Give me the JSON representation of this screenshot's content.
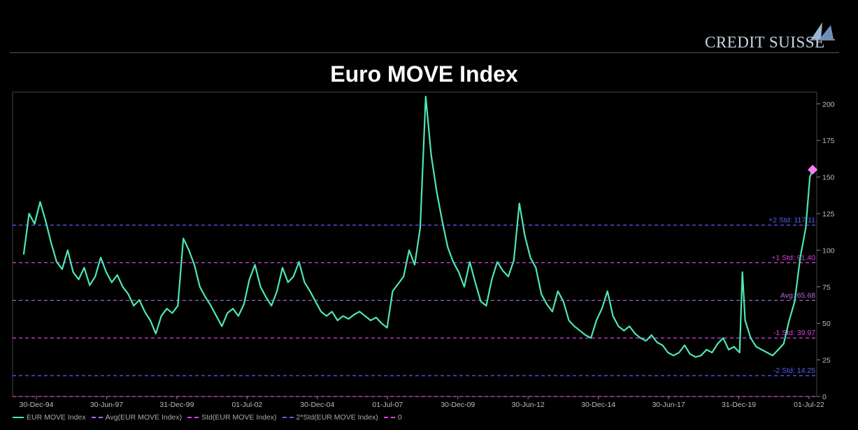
{
  "header": {
    "logo_text": "CREDIT SUISSE",
    "logo_icon": "sails-icon"
  },
  "chart_data": {
    "type": "line",
    "title": "Euro MOVE Index",
    "xlabel": "",
    "ylabel": "",
    "x_tick_labels": [
      "30-Dec-94",
      "30-Jun-97",
      "31-Dec-99",
      "01-Jul-02",
      "30-Dec-04",
      "01-Jul-07",
      "30-Dec-09",
      "30-Jun-12",
      "30-Dec-14",
      "30-Jun-17",
      "31-Dec-19",
      "01-Jul-22"
    ],
    "y_ticks": [
      0,
      25,
      50,
      75,
      100,
      125,
      150,
      175,
      200
    ],
    "ylim": [
      0,
      208
    ],
    "grid": false,
    "legend_position": "bottom",
    "series": [
      {
        "name": "EUR MOVE Index",
        "color": "#4de8b0",
        "points": [
          [
            1994.1,
            97
          ],
          [
            1994.3,
            125
          ],
          [
            1994.5,
            118
          ],
          [
            1994.7,
            133
          ],
          [
            1994.9,
            120
          ],
          [
            1995.1,
            105
          ],
          [
            1995.3,
            92
          ],
          [
            1995.5,
            87
          ],
          [
            1995.7,
            100
          ],
          [
            1995.9,
            85
          ],
          [
            1996.1,
            80
          ],
          [
            1996.3,
            88
          ],
          [
            1996.5,
            76
          ],
          [
            1996.7,
            82
          ],
          [
            1996.9,
            95
          ],
          [
            1997.1,
            85
          ],
          [
            1997.3,
            78
          ],
          [
            1997.5,
            83
          ],
          [
            1997.7,
            75
          ],
          [
            1997.9,
            70
          ],
          [
            1998.1,
            62
          ],
          [
            1998.3,
            66
          ],
          [
            1998.5,
            58
          ],
          [
            1998.7,
            52
          ],
          [
            1998.9,
            43
          ],
          [
            1999.1,
            55
          ],
          [
            1999.3,
            60
          ],
          [
            1999.5,
            57
          ],
          [
            1999.7,
            62
          ],
          [
            1999.9,
            108
          ],
          [
            2000.1,
            100
          ],
          [
            2000.3,
            90
          ],
          [
            2000.5,
            75
          ],
          [
            2000.7,
            68
          ],
          [
            2000.9,
            62
          ],
          [
            2001.1,
            55
          ],
          [
            2001.3,
            48
          ],
          [
            2001.5,
            57
          ],
          [
            2001.7,
            60
          ],
          [
            2001.9,
            55
          ],
          [
            2002.1,
            63
          ],
          [
            2002.3,
            80
          ],
          [
            2002.5,
            90
          ],
          [
            2002.7,
            75
          ],
          [
            2002.9,
            68
          ],
          [
            2003.1,
            62
          ],
          [
            2003.3,
            72
          ],
          [
            2003.5,
            88
          ],
          [
            2003.7,
            78
          ],
          [
            2003.9,
            82
          ],
          [
            2004.1,
            92
          ],
          [
            2004.3,
            78
          ],
          [
            2004.5,
            72
          ],
          [
            2004.7,
            65
          ],
          [
            2004.9,
            58
          ],
          [
            2005.1,
            55
          ],
          [
            2005.3,
            58
          ],
          [
            2005.5,
            52
          ],
          [
            2005.7,
            55
          ],
          [
            2005.9,
            53
          ],
          [
            2006.1,
            56
          ],
          [
            2006.3,
            58
          ],
          [
            2006.5,
            55
          ],
          [
            2006.7,
            52
          ],
          [
            2006.9,
            54
          ],
          [
            2007.1,
            50
          ],
          [
            2007.3,
            47
          ],
          [
            2007.5,
            72
          ],
          [
            2007.7,
            77
          ],
          [
            2007.9,
            82
          ],
          [
            2008.1,
            100
          ],
          [
            2008.3,
            90
          ],
          [
            2008.5,
            115
          ],
          [
            2008.7,
            205
          ],
          [
            2008.9,
            165
          ],
          [
            2009.1,
            140
          ],
          [
            2009.3,
            120
          ],
          [
            2009.5,
            102
          ],
          [
            2009.7,
            92
          ],
          [
            2009.9,
            85
          ],
          [
            2010.1,
            75
          ],
          [
            2010.3,
            92
          ],
          [
            2010.5,
            78
          ],
          [
            2010.7,
            65
          ],
          [
            2010.9,
            62
          ],
          [
            2011.1,
            80
          ],
          [
            2011.3,
            92
          ],
          [
            2011.5,
            86
          ],
          [
            2011.7,
            82
          ],
          [
            2011.9,
            93
          ],
          [
            2012.1,
            132
          ],
          [
            2012.3,
            110
          ],
          [
            2012.5,
            95
          ],
          [
            2012.7,
            88
          ],
          [
            2012.9,
            70
          ],
          [
            2013.1,
            63
          ],
          [
            2013.3,
            58
          ],
          [
            2013.5,
            72
          ],
          [
            2013.7,
            65
          ],
          [
            2013.9,
            52
          ],
          [
            2014.1,
            48
          ],
          [
            2014.3,
            45
          ],
          [
            2014.5,
            42
          ],
          [
            2014.7,
            40
          ],
          [
            2014.9,
            52
          ],
          [
            2015.1,
            60
          ],
          [
            2015.3,
            72
          ],
          [
            2015.5,
            55
          ],
          [
            2015.7,
            48
          ],
          [
            2015.9,
            45
          ],
          [
            2016.1,
            48
          ],
          [
            2016.3,
            43
          ],
          [
            2016.5,
            40
          ],
          [
            2016.7,
            38
          ],
          [
            2016.9,
            42
          ],
          [
            2017.1,
            37
          ],
          [
            2017.3,
            35
          ],
          [
            2017.5,
            30
          ],
          [
            2017.7,
            28
          ],
          [
            2017.9,
            30
          ],
          [
            2018.1,
            35
          ],
          [
            2018.3,
            29
          ],
          [
            2018.5,
            27
          ],
          [
            2018.7,
            28
          ],
          [
            2018.9,
            32
          ],
          [
            2019.1,
            30
          ],
          [
            2019.3,
            36
          ],
          [
            2019.5,
            40
          ],
          [
            2019.7,
            32
          ],
          [
            2019.9,
            34
          ],
          [
            2020.1,
            30
          ],
          [
            2020.2,
            85
          ],
          [
            2020.3,
            52
          ],
          [
            2020.5,
            40
          ],
          [
            2020.7,
            34
          ],
          [
            2020.9,
            32
          ],
          [
            2021.1,
            30
          ],
          [
            2021.3,
            28
          ],
          [
            2021.5,
            32
          ],
          [
            2021.7,
            36
          ],
          [
            2021.9,
            52
          ],
          [
            2022.1,
            65
          ],
          [
            2022.3,
            95
          ],
          [
            2022.5,
            115
          ],
          [
            2022.65,
            150
          ],
          [
            2022.75,
            155
          ]
        ]
      },
      {
        "name": "Avg(EUR MOVE Index)",
        "color": "#b46bdc",
        "value": 65.68,
        "label": "Avg: 65.68"
      },
      {
        "name": "Std(EUR MOVE Index)",
        "color": "#e040e0",
        "value": 91.4,
        "label": "+1 Std: 91.40"
      },
      {
        "name": "Std(EUR MOVE Index)",
        "color": "#e040e0",
        "value": 39.97,
        "label": "-1 Std: 39.97"
      },
      {
        "name": "2*Std(EUR MOVE Index)",
        "color": "#5b5bff",
        "value": 117.11,
        "label": "+2 Std: 117.11"
      },
      {
        "name": "2*Std(EUR MOVE Index)",
        "color": "#5b5bff",
        "value": 14.25,
        "label": "-2 Std: 14.25"
      },
      {
        "name": "0",
        "color": "#e040e0",
        "value": 0
      }
    ],
    "marker": {
      "x": 2022.75,
      "y": 155,
      "color": "#ff7cf0"
    },
    "legend": [
      {
        "label": "EUR MOVE Index",
        "color": "#4de8b0",
        "style": "solid"
      },
      {
        "label": "Avg(EUR MOVE Index)",
        "color": "#b46bdc",
        "style": "dash"
      },
      {
        "label": "Std(EUR MOVE Index)",
        "color": "#e040e0",
        "style": "dash"
      },
      {
        "label": "2*Std(EUR MOVE Index)",
        "color": "#5b5bff",
        "style": "dash"
      },
      {
        "label": "0",
        "color": "#e040e0",
        "style": "dash"
      }
    ]
  }
}
